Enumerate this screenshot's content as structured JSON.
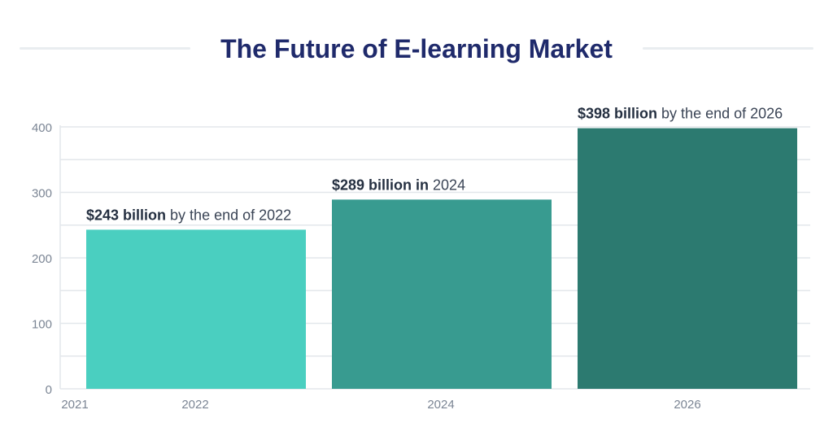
{
  "title": "The Future of E-learning Market",
  "colors": {
    "title": "#1f2a6b",
    "grid": "#e3e7eb",
    "bars": [
      "#4acfc0",
      "#389b90",
      "#2c7a70"
    ]
  },
  "chart_data": {
    "type": "bar",
    "title": "The Future of E-learning Market",
    "xlabel": "",
    "ylabel": "",
    "x_ticks": [
      "2021",
      "2022",
      "2024",
      "2026"
    ],
    "categories": [
      "2022",
      "2024",
      "2026"
    ],
    "values": [
      243,
      289,
      398
    ],
    "y_ticks": [
      0,
      100,
      200,
      300,
      400
    ],
    "ylim": [
      0,
      400
    ],
    "grid": true,
    "data_labels": [
      {
        "bold": "$243 billion",
        "rest": " by the end of 2022"
      },
      {
        "bold": "$289 billion in",
        "rest": " 2024"
      },
      {
        "bold": "$398 billion",
        "rest": " by the end of 2026"
      }
    ]
  }
}
